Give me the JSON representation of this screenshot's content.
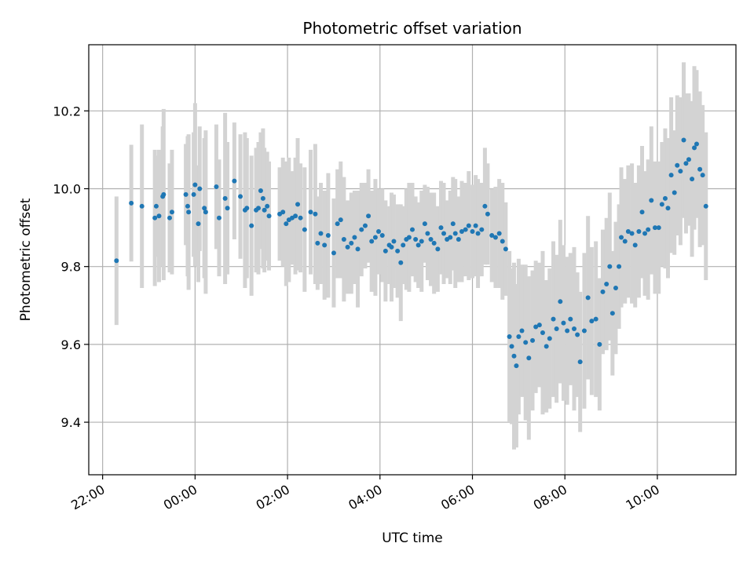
{
  "chart_data": {
    "type": "scatter",
    "title": "Photometric offset variation",
    "xlabel": "UTC time",
    "ylabel": "Photometric offset",
    "x_unit": "hours since 00:00 UTC",
    "x_ticks": [
      {
        "value": -2,
        "label": "22:00"
      },
      {
        "value": 0,
        "label": "00:00"
      },
      {
        "value": 2,
        "label": "02:00"
      },
      {
        "value": 4,
        "label": "04:00"
      },
      {
        "value": 6,
        "label": "06:00"
      },
      {
        "value": 8,
        "label": "08:00"
      },
      {
        "value": 10,
        "label": "10:00"
      }
    ],
    "y_ticks": [
      {
        "value": 9.4,
        "label": "9.4"
      },
      {
        "value": 9.6,
        "label": "9.6"
      },
      {
        "value": 9.8,
        "label": "9.8"
      },
      {
        "value": 10.0,
        "label": "10.0"
      },
      {
        "value": 10.2,
        "label": "10.2"
      }
    ],
    "xlim": [
      -2.3,
      11.7
    ],
    "ylim": [
      9.265,
      10.37
    ],
    "grid": true,
    "colors": {
      "marker": "#1f77b4",
      "errorbar": "#d3d3d3"
    },
    "series": [
      {
        "points": [
          [
            -1.7,
            9.815,
            0.165
          ],
          [
            -1.38,
            9.963,
            0.15
          ],
          [
            -1.15,
            9.955,
            0.21
          ],
          [
            -0.87,
            9.925,
            0.175
          ],
          [
            -0.84,
            9.955,
            0.13
          ],
          [
            -0.78,
            9.93,
            0.17
          ],
          [
            -0.7,
            9.98,
            0.18
          ],
          [
            -0.68,
            9.985,
            0.22
          ],
          [
            -0.55,
            9.925,
            0.14
          ],
          [
            -0.5,
            9.94,
            0.16
          ],
          [
            -0.2,
            9.985,
            0.13
          ],
          [
            -0.16,
            9.955,
            0.18
          ],
          [
            -0.14,
            9.94,
            0.2
          ],
          [
            -0.03,
            9.985,
            0.16
          ],
          [
            0.0,
            10.01,
            0.21
          ],
          [
            0.07,
            9.91,
            0.15
          ],
          [
            0.1,
            10.0,
            0.16
          ],
          [
            0.2,
            9.95,
            0.18
          ],
          [
            0.23,
            9.94,
            0.21
          ],
          [
            0.46,
            10.005,
            0.16
          ],
          [
            0.52,
            9.925,
            0.15
          ],
          [
            0.65,
            9.975,
            0.22
          ],
          [
            0.7,
            9.95,
            0.17
          ],
          [
            0.85,
            10.02,
            0.15
          ],
          [
            0.98,
            9.98,
            0.16
          ],
          [
            1.08,
            9.945,
            0.2
          ],
          [
            1.12,
            9.95,
            0.18
          ],
          [
            1.22,
            9.905,
            0.18
          ],
          [
            1.32,
            9.945,
            0.16
          ],
          [
            1.37,
            9.95,
            0.17
          ],
          [
            1.42,
            9.995,
            0.15
          ],
          [
            1.47,
            9.975,
            0.18
          ],
          [
            1.5,
            9.945,
            0.16
          ],
          [
            1.56,
            9.955,
            0.14
          ],
          [
            1.6,
            9.93,
            0.14
          ],
          [
            1.83,
            9.935,
            0.12
          ],
          [
            1.9,
            9.94,
            0.14
          ],
          [
            1.97,
            9.91,
            0.16
          ],
          [
            2.03,
            9.92,
            0.16
          ],
          [
            2.1,
            9.925,
            0.12
          ],
          [
            2.17,
            9.93,
            0.15
          ],
          [
            2.22,
            9.96,
            0.17
          ],
          [
            2.28,
            9.925,
            0.14
          ],
          [
            2.37,
            9.895,
            0.16
          ],
          [
            2.5,
            9.94,
            0.16
          ],
          [
            2.6,
            9.935,
            0.18
          ],
          [
            2.65,
            9.86,
            0.12
          ],
          [
            2.72,
            9.885,
            0.13
          ],
          [
            2.8,
            9.855,
            0.14
          ],
          [
            2.88,
            9.88,
            0.16
          ],
          [
            3.0,
            9.835,
            0.14
          ],
          [
            3.08,
            9.91,
            0.14
          ],
          [
            3.15,
            9.92,
            0.15
          ],
          [
            3.22,
            9.87,
            0.16
          ],
          [
            3.3,
            9.85,
            0.12
          ],
          [
            3.38,
            9.86,
            0.13
          ],
          [
            3.45,
            9.875,
            0.12
          ],
          [
            3.52,
            9.845,
            0.15
          ],
          [
            3.6,
            9.895,
            0.12
          ],
          [
            3.68,
            9.905,
            0.11
          ],
          [
            3.75,
            9.93,
            0.12
          ],
          [
            3.82,
            9.865,
            0.13
          ],
          [
            3.9,
            9.875,
            0.15
          ],
          [
            3.97,
            9.89,
            0.11
          ],
          [
            4.05,
            9.88,
            0.12
          ],
          [
            4.12,
            9.84,
            0.13
          ],
          [
            4.2,
            9.855,
            0.1
          ],
          [
            4.25,
            9.85,
            0.14
          ],
          [
            4.3,
            9.865,
            0.12
          ],
          [
            4.38,
            9.84,
            0.12
          ],
          [
            4.45,
            9.81,
            0.15
          ],
          [
            4.5,
            9.855,
            0.1
          ],
          [
            4.57,
            9.87,
            0.13
          ],
          [
            4.63,
            9.875,
            0.14
          ],
          [
            4.7,
            9.895,
            0.12
          ],
          [
            4.77,
            9.87,
            0.11
          ],
          [
            4.83,
            9.855,
            0.11
          ],
          [
            4.9,
            9.865,
            0.13
          ],
          [
            4.97,
            9.91,
            0.1
          ],
          [
            5.03,
            9.885,
            0.12
          ],
          [
            5.1,
            9.87,
            0.12
          ],
          [
            5.17,
            9.86,
            0.13
          ],
          [
            5.25,
            9.845,
            0.11
          ],
          [
            5.32,
            9.9,
            0.12
          ],
          [
            5.38,
            9.885,
            0.13
          ],
          [
            5.45,
            9.87,
            0.1
          ],
          [
            5.52,
            9.875,
            0.12
          ],
          [
            5.58,
            9.91,
            0.12
          ],
          [
            5.63,
            9.885,
            0.14
          ],
          [
            5.7,
            9.87,
            0.11
          ],
          [
            5.77,
            9.89,
            0.13
          ],
          [
            5.85,
            9.895,
            0.12
          ],
          [
            5.92,
            9.905,
            0.14
          ],
          [
            6.0,
            9.89,
            0.12
          ],
          [
            6.07,
            9.905,
            0.13
          ],
          [
            6.12,
            9.885,
            0.14
          ],
          [
            6.2,
            9.895,
            0.12
          ],
          [
            6.27,
            9.955,
            0.15
          ],
          [
            6.33,
            9.935,
            0.13
          ],
          [
            6.42,
            9.88,
            0.12
          ],
          [
            6.5,
            9.875,
            0.13
          ],
          [
            6.58,
            9.885,
            0.14
          ],
          [
            6.65,
            9.865,
            0.15
          ],
          [
            6.72,
            9.845,
            0.12
          ],
          [
            6.8,
            9.62,
            0.22
          ],
          [
            6.85,
            9.595,
            0.2
          ],
          [
            6.9,
            9.57,
            0.24
          ],
          [
            6.95,
            9.545,
            0.21
          ],
          [
            7.0,
            9.62,
            0.2
          ],
          [
            7.07,
            9.635,
            0.17
          ],
          [
            7.15,
            9.605,
            0.2
          ],
          [
            7.22,
            9.565,
            0.21
          ],
          [
            7.3,
            9.61,
            0.18
          ],
          [
            7.37,
            9.645,
            0.17
          ],
          [
            7.45,
            9.65,
            0.16
          ],
          [
            7.52,
            9.63,
            0.21
          ],
          [
            7.6,
            9.595,
            0.17
          ],
          [
            7.67,
            9.615,
            0.18
          ],
          [
            7.75,
            9.665,
            0.2
          ],
          [
            7.82,
            9.64,
            0.19
          ],
          [
            7.9,
            9.71,
            0.21
          ],
          [
            7.97,
            9.655,
            0.2
          ],
          [
            8.05,
            9.635,
            0.19
          ],
          [
            8.12,
            9.665,
            0.17
          ],
          [
            8.2,
            9.64,
            0.21
          ],
          [
            8.27,
            9.625,
            0.16
          ],
          [
            8.33,
            9.555,
            0.18
          ],
          [
            8.42,
            9.635,
            0.2
          ],
          [
            8.5,
            9.72,
            0.21
          ],
          [
            8.58,
            9.66,
            0.19
          ],
          [
            8.67,
            9.665,
            0.2
          ],
          [
            8.75,
            9.6,
            0.17
          ],
          [
            8.82,
            9.735,
            0.16
          ],
          [
            8.9,
            9.755,
            0.17
          ],
          [
            8.97,
            9.8,
            0.19
          ],
          [
            9.03,
            9.68,
            0.16
          ],
          [
            9.1,
            9.745,
            0.17
          ],
          [
            9.17,
            9.8,
            0.16
          ],
          [
            9.22,
            9.875,
            0.18
          ],
          [
            9.3,
            9.865,
            0.16
          ],
          [
            9.37,
            9.89,
            0.17
          ],
          [
            9.45,
            9.885,
            0.18
          ],
          [
            9.52,
            9.855,
            0.16
          ],
          [
            9.6,
            9.89,
            0.17
          ],
          [
            9.67,
            9.94,
            0.17
          ],
          [
            9.73,
            9.885,
            0.16
          ],
          [
            9.8,
            9.895,
            0.18
          ],
          [
            9.87,
            9.97,
            0.19
          ],
          [
            9.95,
            9.9,
            0.17
          ],
          [
            10.03,
            9.9,
            0.17
          ],
          [
            10.1,
            9.96,
            0.16
          ],
          [
            10.17,
            9.975,
            0.18
          ],
          [
            10.23,
            9.95,
            0.18
          ],
          [
            10.3,
            10.035,
            0.2
          ],
          [
            10.37,
            9.99,
            0.16
          ],
          [
            10.43,
            10.06,
            0.18
          ],
          [
            10.5,
            10.045,
            0.19
          ],
          [
            10.57,
            10.125,
            0.2
          ],
          [
            10.62,
            10.065,
            0.18
          ],
          [
            10.68,
            10.075,
            0.17
          ],
          [
            10.75,
            10.025,
            0.2
          ],
          [
            10.8,
            10.105,
            0.21
          ],
          [
            10.85,
            10.115,
            0.19
          ],
          [
            10.92,
            10.05,
            0.2
          ],
          [
            10.98,
            10.035,
            0.18
          ],
          [
            11.05,
            9.955,
            0.19
          ]
        ]
      }
    ]
  }
}
